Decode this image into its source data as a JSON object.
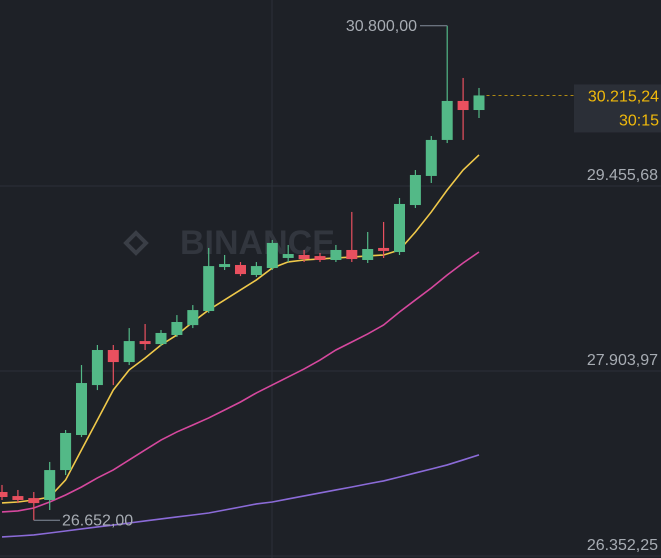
{
  "chart_data": {
    "type": "candlestick",
    "watermark": "BINANCE",
    "categories": [
      null,
      null,
      null,
      null,
      null,
      null,
      null,
      null,
      null,
      null,
      null,
      null,
      null,
      null,
      null,
      null,
      null,
      null,
      null,
      null,
      null,
      null,
      null,
      null,
      null,
      null,
      null,
      null,
      null,
      null,
      null
    ],
    "open": [
      26889,
      26855,
      26838,
      26822,
      27073,
      27367,
      27786,
      28080,
      27979,
      28155,
      28130,
      28206,
      28289,
      28407,
      28776,
      28793,
      28709,
      28768,
      28852,
      28877,
      28868,
      28835,
      28919,
      28835,
      28936,
      28902,
      29296,
      29540,
      29842,
      30169,
      30093
    ],
    "high": [
      26948,
      26906,
      26889,
      27141,
      27409,
      27954,
      28122,
      28122,
      28264,
      28298,
      28248,
      28373,
      28457,
      28936,
      28877,
      28818,
      28818,
      29003,
      28961,
      28919,
      28894,
      28961,
      29238,
      29070,
      29154,
      29355,
      29590,
      29875,
      30800,
      30362,
      30278
    ],
    "low": [
      26822,
      26796,
      26652,
      26738,
      27031,
      27350,
      27744,
      27786,
      27954,
      28080,
      28114,
      28189,
      28264,
      28390,
      28751,
      28700,
      28692,
      28751,
      28818,
      28818,
      28818,
      28818,
      28818,
      28810,
      28852,
      28877,
      29271,
      29481,
      29816,
      29842,
      30026
    ],
    "close": [
      26847,
      26822,
      26796,
      27073,
      27384,
      27803,
      28080,
      27979,
      28155,
      28130,
      28223,
      28315,
      28415,
      28784,
      28801,
      28717,
      28784,
      28978,
      28885,
      28843,
      28835,
      28919,
      28843,
      28927,
      28911,
      29305,
      29548,
      29842,
      30169,
      30093,
      30215.24
    ],
    "up_color": "#53b987",
    "down_color": "#e9505f",
    "lines": [
      {
        "color": "#f0c94a",
        "values": [
          26797,
          26805,
          26822,
          26847,
          26990,
          27242,
          27493,
          27745,
          27913,
          28013,
          28122,
          28206,
          28315,
          28416,
          28500,
          28584,
          28668,
          28768,
          28819,
          28835,
          28844,
          28852,
          28860,
          28869,
          28877,
          28919,
          29070,
          29238,
          29422,
          29590,
          29716
        ]
      },
      {
        "color": "#d6489e",
        "values": [
          26722,
          26730,
          26755,
          26805,
          26864,
          26931,
          27007,
          27074,
          27158,
          27242,
          27325,
          27393,
          27451,
          27510,
          27577,
          27644,
          27720,
          27787,
          27854,
          27921,
          27996,
          28080,
          28147,
          28215,
          28290,
          28399,
          28500,
          28600,
          28709,
          28810,
          28902
        ]
      },
      {
        "color": "#8b6bd8",
        "values": [
          26512,
          26520,
          26529,
          26545,
          26562,
          26579,
          26596,
          26612,
          26629,
          26646,
          26663,
          26680,
          26696,
          26713,
          26738,
          26763,
          26789,
          26805,
          26831,
          26856,
          26881,
          26906,
          26931,
          26957,
          26982,
          27015,
          27049,
          27082,
          27116,
          27158,
          27200
        ]
      }
    ],
    "ylim": [
      26335.4,
      31015.8
    ],
    "yticks": [
      {
        "value": 29455.68,
        "label": "29.455,68"
      },
      {
        "value": 27903.97,
        "label": "27.903,97"
      },
      {
        "value": 26352.25,
        "label": "26.352,25"
      }
    ],
    "grid": true,
    "high_marker": {
      "value": 30800,
      "label": "30.800,00"
    },
    "low_marker": {
      "value": 26652,
      "label": "26.652,00"
    },
    "last_price": {
      "value": 30215.24,
      "label": "30.215,24"
    },
    "last_price_color": "#f0b90b",
    "countdown": "30:15"
  }
}
